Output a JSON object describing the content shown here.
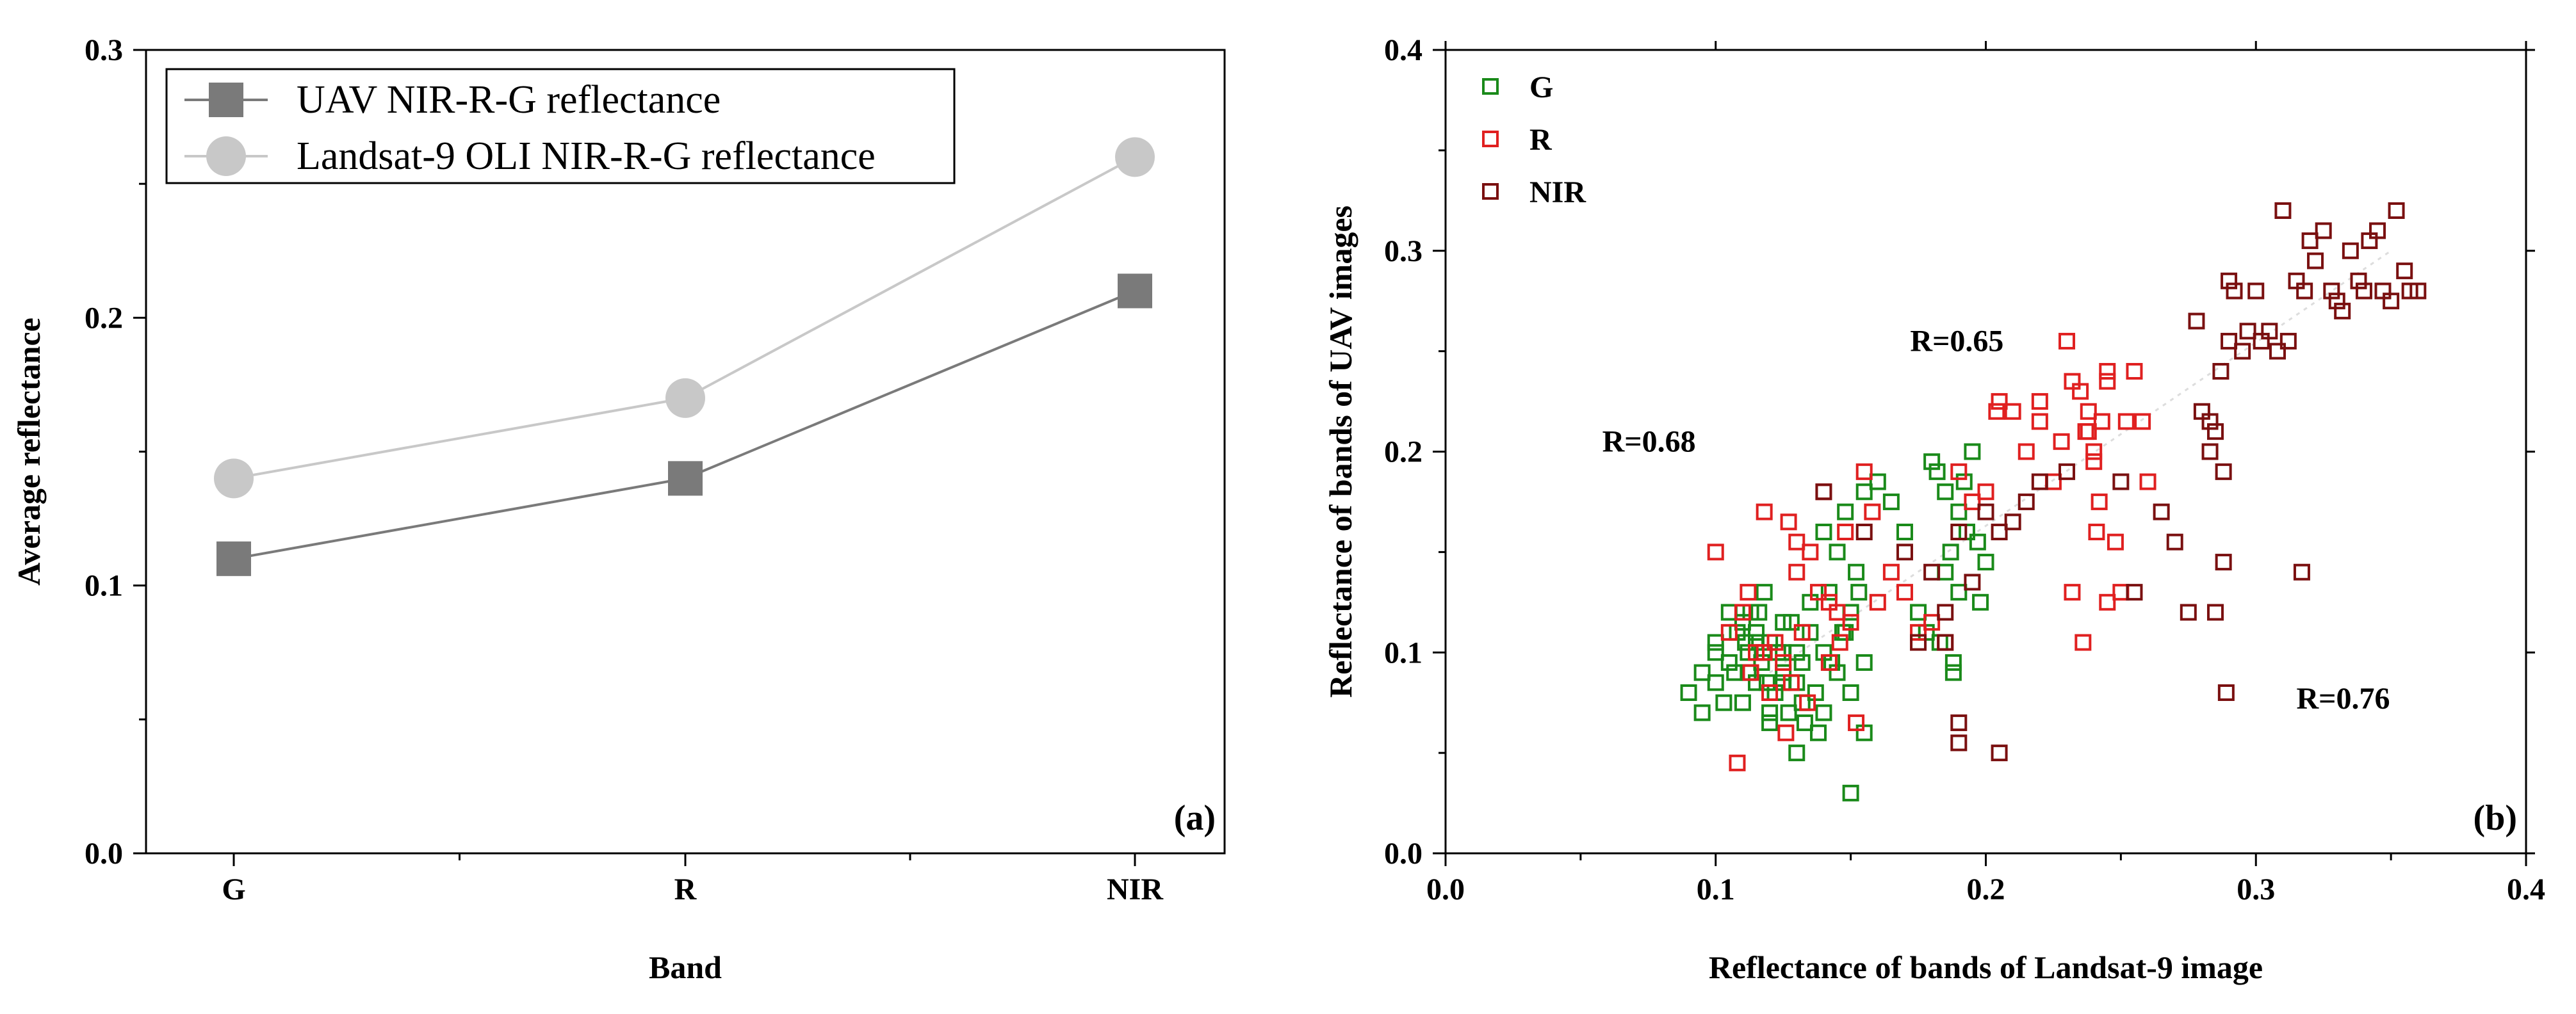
{
  "chart_data": [
    {
      "type": "line",
      "panel_label": "(a)",
      "xlabel": "Band",
      "ylabel": "Average reflectance",
      "categories": [
        "G",
        "R",
        "NIR"
      ],
      "ylim": [
        0,
        0.3
      ],
      "yticks": [
        "0.0",
        "0.1",
        "0.2",
        "0.3"
      ],
      "legend_position": "top-left",
      "series": [
        {
          "name": "UAV NIR-R-G reflectance",
          "values": [
            0.11,
            0.14,
            0.21
          ],
          "color": "#7a7a7a",
          "marker": "square"
        },
        {
          "name": "Landsat-9 OLI NIR-R-G reflectance",
          "values": [
            0.14,
            0.17,
            0.26
          ],
          "color": "#c8c8c8",
          "marker": "circle"
        }
      ]
    },
    {
      "type": "scatter",
      "panel_label": "(b)",
      "xlabel": "Reflectance of bands of Landsat-9 image",
      "ylabel": "Reflectance of bands of UAV images",
      "xlim": [
        0,
        0.4
      ],
      "ylim": [
        0,
        0.4
      ],
      "xticks": [
        "0.0",
        "0.1",
        "0.2",
        "0.3",
        "0.4"
      ],
      "yticks": [
        "0.0",
        "0.1",
        "0.2",
        "0.3",
        "0.4"
      ],
      "legend_position": "top-left",
      "annotations": [
        {
          "text": "R=0.68",
          "color": "#1a9a50"
        },
        {
          "text": "R=0.65",
          "color": "#e02020"
        },
        {
          "text": "R=0.76",
          "color": "#7a1010"
        }
      ],
      "series": [
        {
          "name": "G",
          "color": "#1a8a1a",
          "x": [
            0.09,
            0.095,
            0.1,
            0.1,
            0.105,
            0.108,
            0.11,
            0.112,
            0.113,
            0.115,
            0.115,
            0.117,
            0.118,
            0.12,
            0.12,
            0.122,
            0.125,
            0.125,
            0.127,
            0.13,
            0.13,
            0.132,
            0.135,
            0.135,
            0.138,
            0.14,
            0.14,
            0.142,
            0.145,
            0.145,
            0.148,
            0.15,
            0.15,
            0.152,
            0.155,
            0.155,
            0.103,
            0.107,
            0.111,
            0.116,
            0.119,
            0.123,
            0.128,
            0.133,
            0.137,
            0.143,
            0.147,
            0.153,
            0.095,
            0.1,
            0.112,
            0.118,
            0.125,
            0.132,
            0.14,
            0.148,
            0.155,
            0.16,
            0.165,
            0.17,
            0.175,
            0.178,
            0.18,
            0.182,
            0.185,
            0.185,
            0.187,
            0.188,
            0.19,
            0.19,
            0.192,
            0.193,
            0.195,
            0.197,
            0.198,
            0.2,
            0.188,
            0.183,
            0.15,
            0.13,
            0.11,
            0.12,
            0.105,
            0.115,
            0.125
          ],
          "y": [
            0.08,
            0.09,
            0.085,
            0.1,
            0.095,
            0.11,
            0.075,
            0.1,
            0.12,
            0.085,
            0.11,
            0.095,
            0.13,
            0.065,
            0.105,
            0.08,
            0.09,
            0.115,
            0.07,
            0.085,
            0.1,
            0.095,
            0.11,
            0.125,
            0.06,
            0.07,
            0.1,
            0.13,
            0.09,
            0.15,
            0.11,
            0.08,
            0.12,
            0.14,
            0.095,
            0.06,
            0.075,
            0.09,
            0.105,
            0.12,
            0.085,
            0.1,
            0.115,
            0.065,
            0.08,
            0.095,
            0.11,
            0.13,
            0.07,
            0.105,
            0.09,
            0.1,
            0.085,
            0.075,
            0.16,
            0.17,
            0.18,
            0.185,
            0.175,
            0.16,
            0.12,
            0.11,
            0.195,
            0.19,
            0.18,
            0.14,
            0.15,
            0.095,
            0.13,
            0.17,
            0.185,
            0.16,
            0.2,
            0.155,
            0.125,
            0.145,
            0.09,
            0.105,
            0.03,
            0.05,
            0.115,
            0.07,
            0.12,
            0.105,
            0.1
          ],
          "marker": "square"
        },
        {
          "name": "R",
          "color": "#e02020",
          "x": [
            0.1,
            0.105,
            0.108,
            0.11,
            0.113,
            0.115,
            0.118,
            0.12,
            0.122,
            0.125,
            0.127,
            0.13,
            0.13,
            0.132,
            0.135,
            0.138,
            0.14,
            0.142,
            0.145,
            0.148,
            0.15,
            0.152,
            0.155,
            0.158,
            0.16,
            0.165,
            0.17,
            0.175,
            0.18,
            0.185,
            0.19,
            0.195,
            0.2,
            0.205,
            0.21,
            0.215,
            0.22,
            0.225,
            0.228,
            0.23,
            0.232,
            0.235,
            0.237,
            0.238,
            0.24,
            0.24,
            0.242,
            0.243,
            0.245,
            0.245,
            0.248,
            0.25,
            0.252,
            0.255,
            0.258,
            0.26,
            0.232,
            0.236,
            0.241,
            0.204,
            0.22,
            0.238,
            0.245,
            0.128,
            0.118,
            0.112,
            0.126,
            0.134,
            0.142,
            0.146
          ],
          "y": [
            0.15,
            0.11,
            0.045,
            0.12,
            0.09,
            0.1,
            0.17,
            0.08,
            0.105,
            0.095,
            0.165,
            0.155,
            0.14,
            0.11,
            0.15,
            0.13,
            0.18,
            0.125,
            0.12,
            0.16,
            0.115,
            0.065,
            0.19,
            0.17,
            0.125,
            0.14,
            0.13,
            0.11,
            0.115,
            0.105,
            0.19,
            0.175,
            0.18,
            0.225,
            0.22,
            0.2,
            0.215,
            0.185,
            0.205,
            0.255,
            0.235,
            0.23,
            0.21,
            0.22,
            0.2,
            0.195,
            0.175,
            0.215,
            0.235,
            0.24,
            0.155,
            0.13,
            0.215,
            0.24,
            0.215,
            0.185,
            0.13,
            0.105,
            0.16,
            0.22,
            0.225,
            0.21,
            0.125,
            0.085,
            0.1,
            0.13,
            0.06,
            0.075,
            0.095,
            0.105
          ],
          "marker": "square"
        },
        {
          "name": "NIR",
          "color": "#7a1010",
          "x": [
            0.14,
            0.155,
            0.17,
            0.175,
            0.18,
            0.185,
            0.19,
            0.19,
            0.195,
            0.2,
            0.205,
            0.21,
            0.215,
            0.22,
            0.23,
            0.25,
            0.255,
            0.265,
            0.27,
            0.275,
            0.278,
            0.28,
            0.283,
            0.285,
            0.287,
            0.288,
            0.29,
            0.29,
            0.292,
            0.295,
            0.297,
            0.3,
            0.302,
            0.305,
            0.308,
            0.31,
            0.312,
            0.315,
            0.318,
            0.32,
            0.322,
            0.325,
            0.328,
            0.33,
            0.332,
            0.335,
            0.338,
            0.34,
            0.342,
            0.345,
            0.347,
            0.35,
            0.352,
            0.355,
            0.357,
            0.36,
            0.285,
            0.288,
            0.317,
            0.289,
            0.19,
            0.205,
            0.185,
            0.283
          ],
          "y": [
            0.18,
            0.16,
            0.15,
            0.105,
            0.14,
            0.12,
            0.16,
            0.055,
            0.135,
            0.17,
            0.16,
            0.165,
            0.175,
            0.185,
            0.19,
            0.185,
            0.13,
            0.17,
            0.155,
            0.12,
            0.265,
            0.22,
            0.2,
            0.21,
            0.24,
            0.19,
            0.255,
            0.285,
            0.28,
            0.25,
            0.26,
            0.28,
            0.255,
            0.26,
            0.25,
            0.32,
            0.255,
            0.285,
            0.28,
            0.305,
            0.295,
            0.31,
            0.28,
            0.275,
            0.27,
            0.3,
            0.285,
            0.28,
            0.305,
            0.31,
            0.28,
            0.275,
            0.32,
            0.29,
            0.28,
            0.28,
            0.12,
            0.145,
            0.14,
            0.08,
            0.065,
            0.05,
            0.105,
            0.215
          ],
          "marker": "square"
        }
      ]
    }
  ]
}
